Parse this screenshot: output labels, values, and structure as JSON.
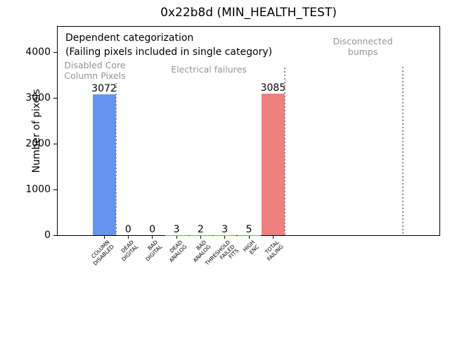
{
  "chart_data": {
    "type": "bar",
    "title": "0x22b8d (MIN_HEALTH_TEST)",
    "ylabel": "Number of pixels",
    "xlabel": "",
    "ylim": [
      0,
      4570
    ],
    "yticks": [
      0,
      1000,
      2000,
      3000,
      4000
    ],
    "grid": false,
    "legend": null,
    "categories": [
      "COLUMN\nDISABLED",
      "DEAD\nDIGITAL",
      "BAD\nDIGITAL",
      "DEAD\nANALOG",
      "BAD\nANALOG",
      "THRESHOLD\nFAILED\nFITS",
      "HIGH\nENC",
      "TOTAL\nFAILING"
    ],
    "values": [
      3072,
      0,
      0,
      3,
      2,
      3,
      5,
      3085
    ],
    "bar_value_labels": [
      "3072",
      "0",
      "0",
      "3",
      "2",
      "3",
      "5",
      "3085"
    ],
    "bar_colors": [
      "#6495ed",
      "#6495ed",
      "#6495ed",
      "#6495ed",
      "#6495ed",
      "#6495ed",
      "#6495ed",
      "#f08080"
    ],
    "annotations": [
      {
        "id": "dependent-note-line1",
        "text": "Dependent categorization",
        "tone": "black"
      },
      {
        "id": "dependent-note-line2",
        "text": "(Failing pixels included in single category)",
        "tone": "black"
      },
      {
        "id": "region-disabled-core",
        "text": "Disabled Core\nColumn Pixels",
        "tone": "gray"
      },
      {
        "id": "region-electrical",
        "text": "Electrical failures",
        "tone": "gray"
      },
      {
        "id": "region-disconnected",
        "text": "Disconnected\nbumps",
        "tone": "gray"
      }
    ],
    "separators": {
      "count": 3,
      "style": "dotted",
      "color": "#8c8c8c"
    },
    "colors": {
      "bar_blue": "#6495ed",
      "bar_red": "#f08080",
      "annotation_gray": "#949494",
      "axis": "#000000",
      "background": "#ffffff"
    }
  }
}
